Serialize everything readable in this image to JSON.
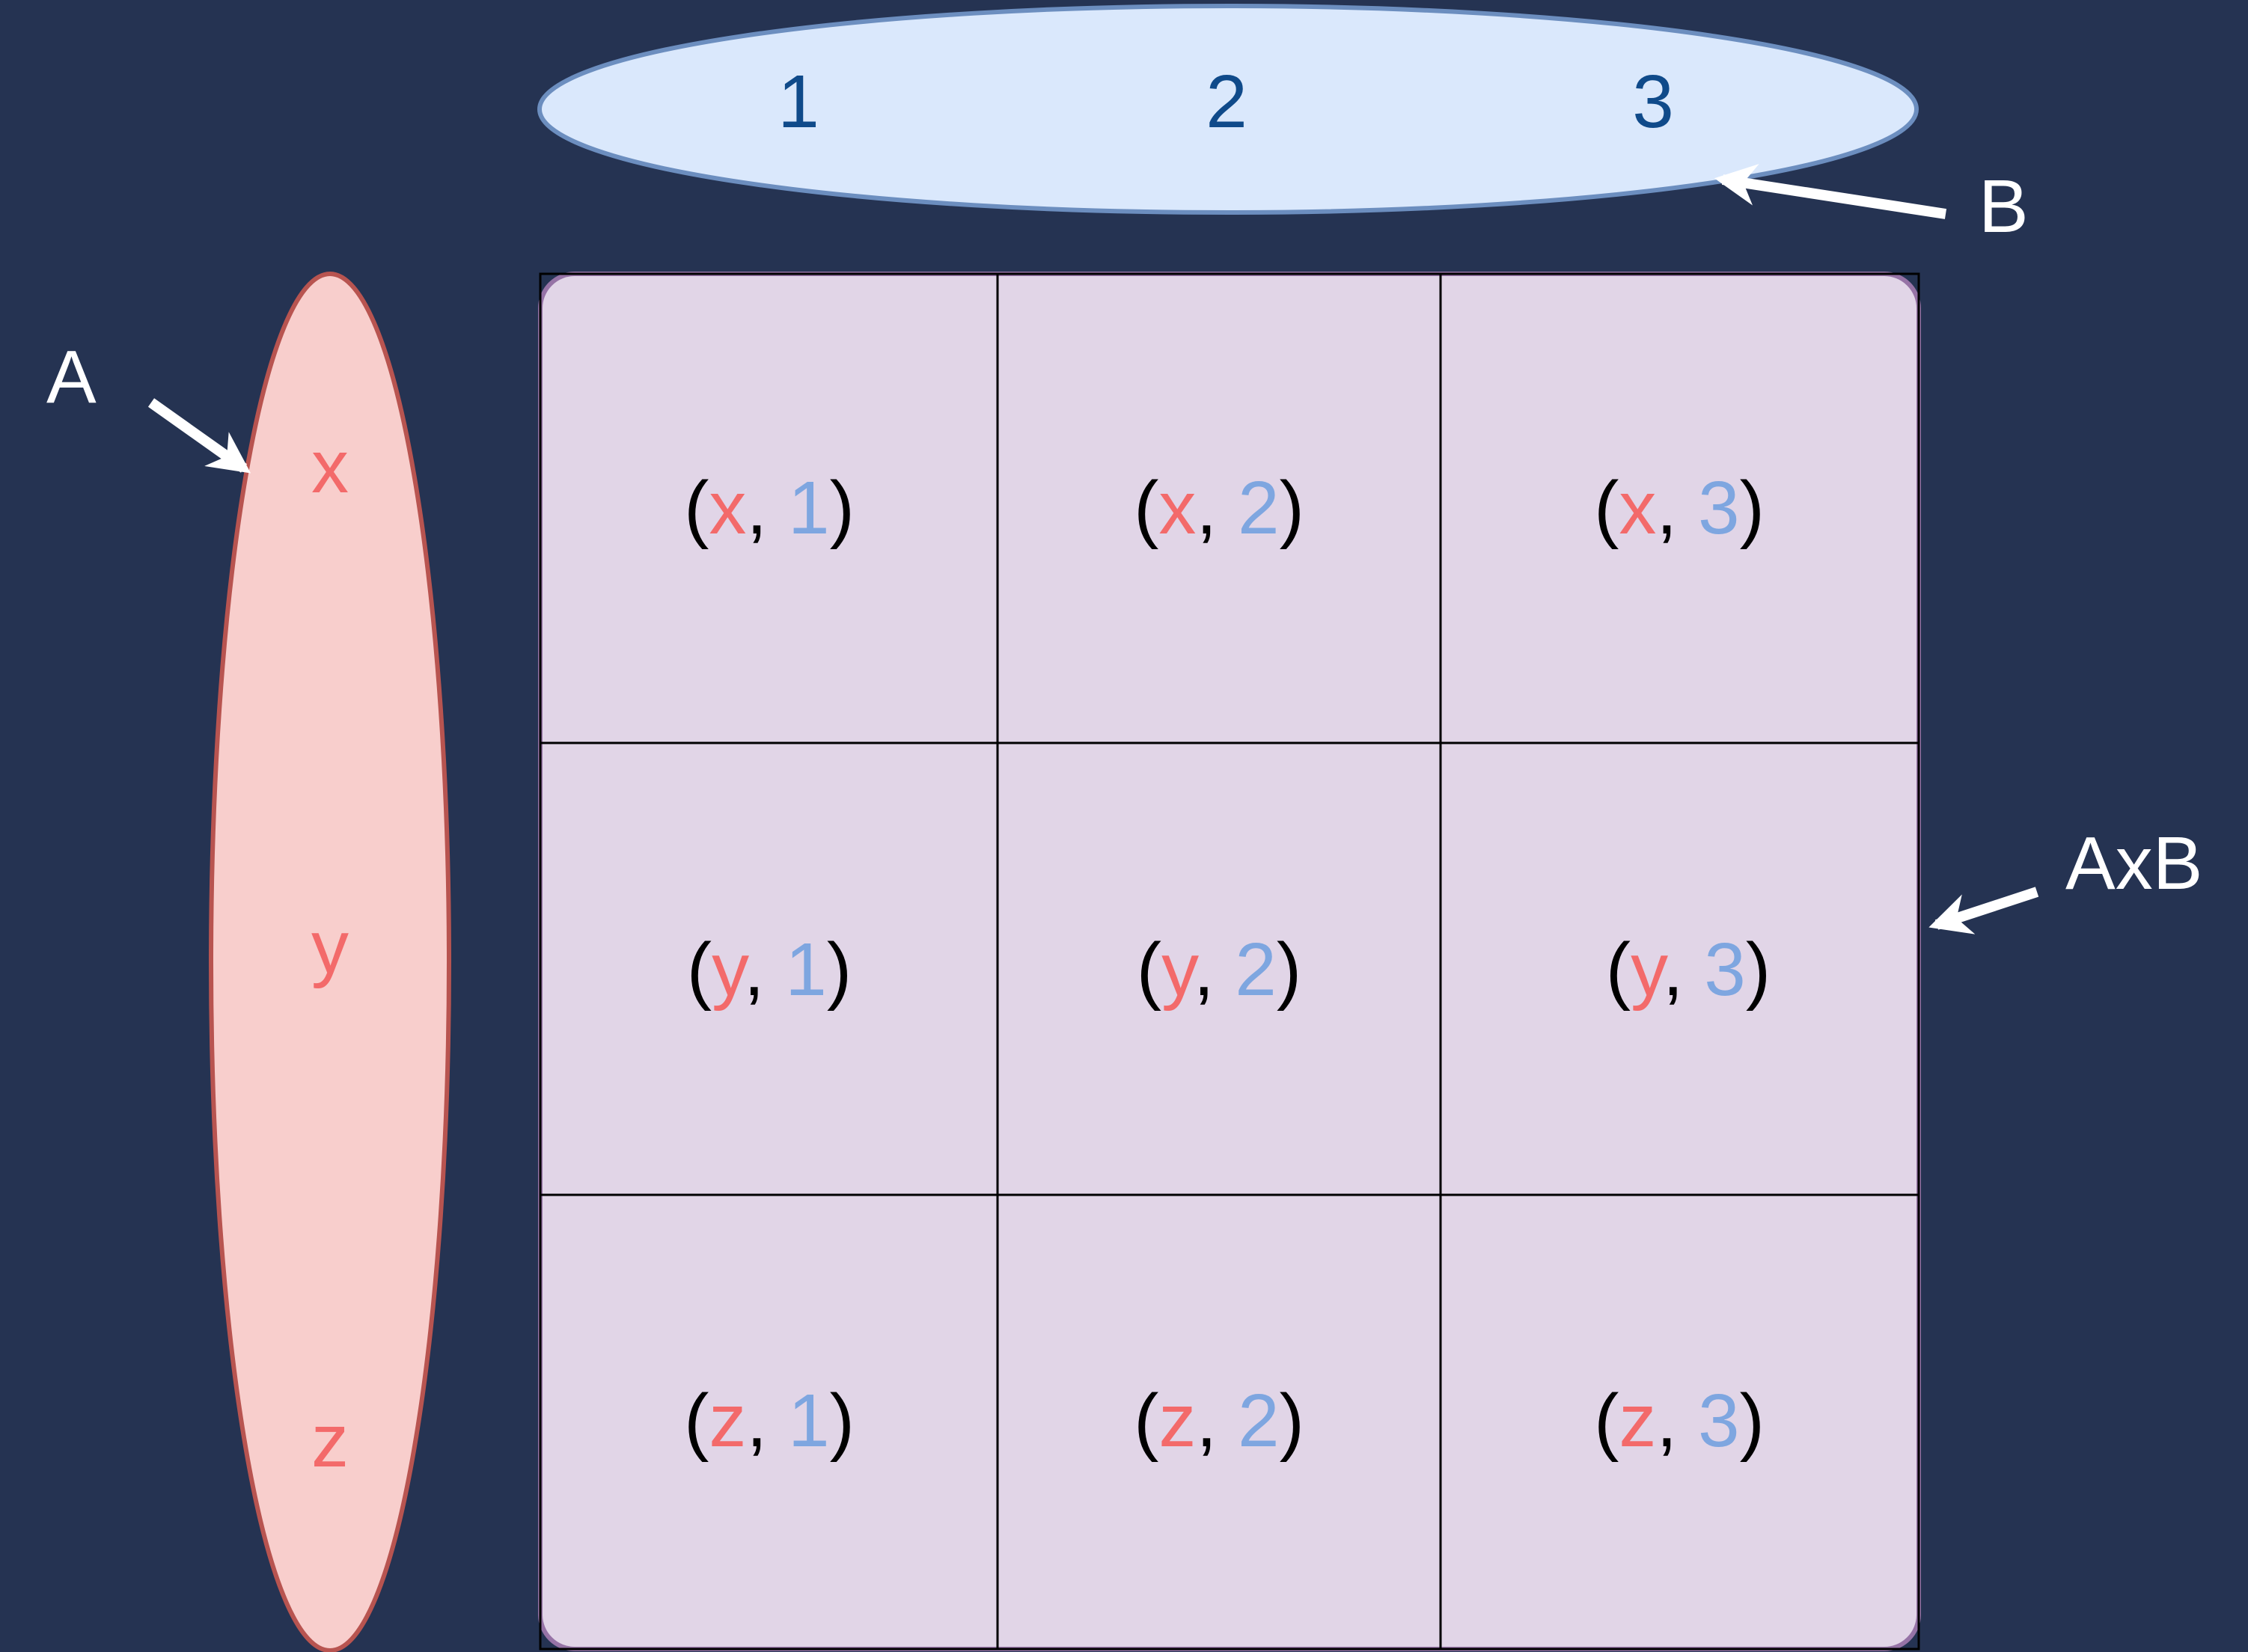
{
  "colors": {
    "background": "#253352",
    "set_a_fill": "#f8cecc",
    "set_a_stroke": "#b85450",
    "set_a_text": "#f36a6a",
    "set_b_fill": "#dae8fc",
    "set_b_stroke": "#6c8ebf",
    "set_b_text": "#0f4a8a",
    "product_fill": "#e1d5e7",
    "product_stroke": "#9673a6",
    "grid_line": "#000000",
    "pair_paren": "#000000",
    "pair_first": "#f36a6a",
    "pair_second": "#7ea6e0",
    "arrow": "#ffffff",
    "label": "#ffffff"
  },
  "labels": {
    "set_a": "A",
    "set_b": "B",
    "product": "AxB"
  },
  "set_a": {
    "elements": [
      "x",
      "y",
      "z"
    ]
  },
  "set_b": {
    "elements": [
      "1",
      "2",
      "3"
    ]
  },
  "pair_format": {
    "open": "(",
    "separator": ", ",
    "close": ")"
  },
  "product": {
    "rows": [
      [
        {
          "first": "x",
          "second": "1"
        },
        {
          "first": "x",
          "second": "2"
        },
        {
          "first": "x",
          "second": "3"
        }
      ],
      [
        {
          "first": "y",
          "second": "1"
        },
        {
          "first": "y",
          "second": "2"
        },
        {
          "first": "y",
          "second": "3"
        }
      ],
      [
        {
          "first": "z",
          "second": "1"
        },
        {
          "first": "z",
          "second": "2"
        },
        {
          "first": "z",
          "second": "3"
        }
      ]
    ]
  }
}
